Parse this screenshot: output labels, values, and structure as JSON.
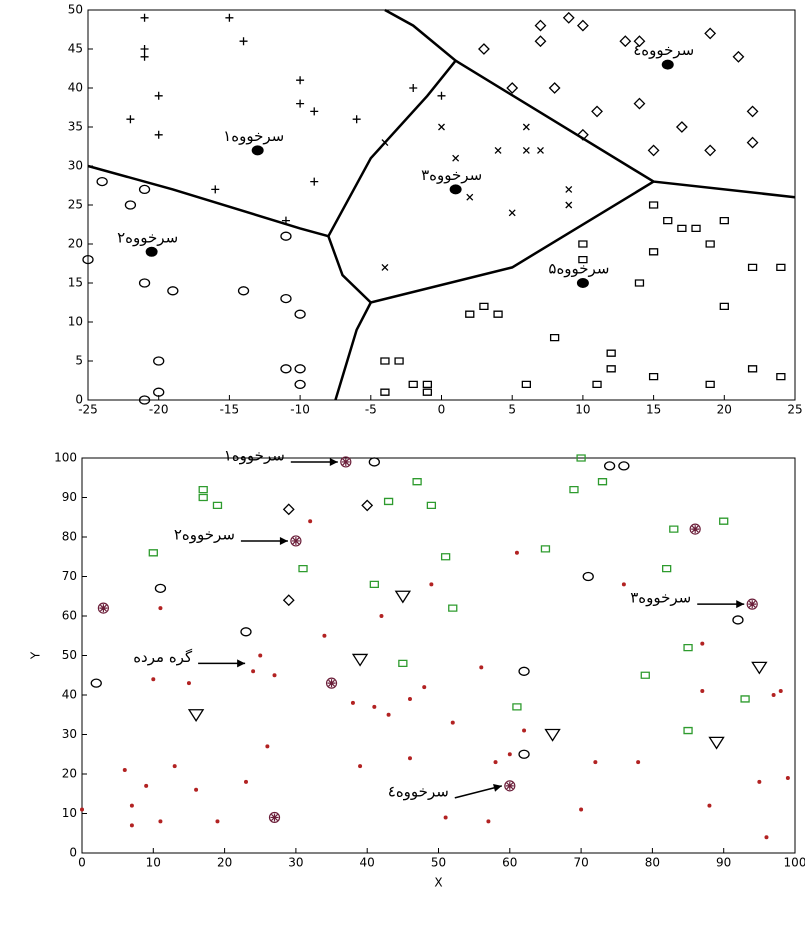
{
  "chart_data": [
    {
      "type": "scatter",
      "xlim": [
        -25,
        25
      ],
      "ylim": [
        0,
        50
      ],
      "xticks": [
        -25,
        -20,
        -15,
        -10,
        -5,
        0,
        5,
        10,
        15,
        20,
        25
      ],
      "yticks": [
        0,
        5,
        10,
        15,
        20,
        25,
        30,
        35,
        40,
        45,
        50
      ],
      "series": [
        {
          "marker": "plus",
          "color": "#000",
          "x": [
            -21,
            -21,
            -21,
            -15,
            -14,
            -22,
            -20,
            -20,
            -10,
            -10,
            -9,
            -16,
            -9,
            -11,
            -6,
            -2,
            0
          ],
          "y": [
            49,
            45,
            44,
            49,
            46,
            36,
            39,
            34,
            41,
            38,
            37,
            27,
            28,
            23,
            36,
            40,
            39
          ]
        },
        {
          "marker": "circle",
          "color": "#000",
          "x": [
            -24,
            -21,
            -22,
            -25,
            -21,
            -19,
            -14,
            -11,
            -10,
            -11,
            -20,
            -11,
            -10,
            -10,
            -20,
            -21
          ],
          "y": [
            28,
            27,
            25,
            18,
            15,
            14,
            14,
            13,
            11,
            21,
            5,
            4,
            4,
            2,
            1,
            0
          ]
        },
        {
          "marker": "cross",
          "color": "#000",
          "x": [
            -4,
            0,
            1,
            2,
            4,
            6,
            7,
            5,
            9,
            9,
            6,
            -4
          ],
          "y": [
            33,
            35,
            31,
            26,
            32,
            32,
            32,
            24,
            27,
            25,
            35,
            17
          ]
        },
        {
          "marker": "diamond",
          "color": "#000",
          "x": [
            3,
            7,
            7,
            9,
            10,
            13,
            14,
            19,
            21,
            22,
            22,
            19,
            17,
            15,
            14,
            11,
            8,
            5,
            10
          ],
          "y": [
            45,
            48,
            46,
            49,
            48,
            46,
            46,
            47,
            44,
            37,
            33,
            32,
            35,
            32,
            38,
            37,
            40,
            40,
            34
          ]
        },
        {
          "marker": "square",
          "color": "#000",
          "x": [
            15,
            16,
            17,
            18,
            20,
            19,
            22,
            24,
            20,
            15,
            14,
            10,
            10,
            4,
            3,
            2,
            8,
            12,
            12,
            11,
            15,
            19,
            22,
            24,
            -3,
            -4,
            -2,
            -1,
            -1,
            -4,
            6
          ],
          "y": [
            25,
            23,
            22,
            22,
            23,
            20,
            17,
            17,
            12,
            19,
            15,
            18,
            20,
            11,
            12,
            11,
            8,
            6,
            4,
            2,
            3,
            2,
            4,
            3,
            5,
            5,
            2,
            2,
            1,
            1,
            2
          ]
        },
        {
          "marker": "filled",
          "color": "#000",
          "x": [
            -13,
            -20.5,
            1,
            16,
            10
          ],
          "y": [
            32,
            19,
            27,
            43,
            15
          ]
        },
        {
          "marker": "line",
          "color": "#000",
          "x": [
            -25,
            -19,
            -10,
            -8,
            -5,
            -1,
            1,
            -2,
            -4
          ],
          "y": [
            30,
            27,
            22,
            21,
            31,
            39,
            43.5,
            48,
            50
          ]
        },
        {
          "marker": "line",
          "color": "#000",
          "x": [
            1,
            15,
            25
          ],
          "y": [
            43.5,
            28,
            26
          ]
        },
        {
          "marker": "line",
          "color": "#000",
          "x": [
            -8,
            -7,
            -5,
            5,
            15
          ],
          "y": [
            21,
            16,
            12.5,
            17,
            28
          ]
        },
        {
          "marker": "line",
          "color": "#000",
          "x": [
            -5,
            -6,
            -7,
            -7.5
          ],
          "y": [
            12.5,
            9,
            3,
            0
          ]
        }
      ],
      "annotations": [
        {
          "text": "سرخووه۱",
          "x": -13,
          "y": 32
        },
        {
          "text": "سرخووه۲",
          "x": -20.5,
          "y": 19
        },
        {
          "text": "سرخووه۳",
          "x": 1,
          "y": 27
        },
        {
          "text": "سرخووه٤",
          "x": 16,
          "y": 43
        },
        {
          "text": "سرخووه۵",
          "x": 10,
          "y": 15
        }
      ]
    },
    {
      "type": "scatter",
      "xlabel": "X",
      "ylabel": "Y",
      "xlim": [
        0,
        100
      ],
      "ylim": [
        0,
        100
      ],
      "xticks": [
        0,
        10,
        20,
        30,
        40,
        50,
        60,
        70,
        80,
        90,
        100
      ],
      "yticks": [
        0,
        10,
        20,
        30,
        40,
        50,
        60,
        70,
        80,
        90,
        100
      ],
      "series": [
        {
          "marker": "dot",
          "color": "#b22222",
          "x": [
            0,
            6,
            7,
            7,
            9,
            11,
            10,
            11,
            13,
            15,
            16,
            19,
            24,
            23,
            25,
            26,
            27,
            32,
            34,
            39,
            38,
            41,
            42,
            43,
            46,
            46,
            48,
            49,
            51,
            52,
            56,
            57,
            58,
            60,
            62,
            61,
            70,
            72,
            76,
            78,
            87,
            87,
            88,
            95,
            96,
            97,
            99,
            98
          ],
          "y": [
            11,
            21,
            12,
            7,
            17,
            8,
            44,
            62,
            22,
            43,
            16,
            8,
            46,
            18,
            50,
            27,
            45,
            84,
            55,
            22,
            38,
            37,
            60,
            35,
            24,
            39,
            42,
            68,
            9,
            33,
            47,
            8,
            23,
            25,
            31,
            76,
            11,
            23,
            68,
            23,
            53,
            41,
            12,
            18,
            4,
            40,
            19,
            41
          ]
        },
        {
          "marker": "circle",
          "color": "#000",
          "x": [
            2,
            11,
            23,
            62,
            62,
            71,
            92,
            41,
            74,
            76
          ],
          "y": [
            43,
            67,
            56,
            46,
            25,
            70,
            59,
            99,
            98,
            98
          ]
        },
        {
          "marker": "diamond",
          "color": "#000",
          "x": [
            29,
            29,
            40
          ],
          "y": [
            87,
            64,
            88
          ]
        },
        {
          "marker": "square",
          "color": "#2e9b2e",
          "x": [
            17,
            17,
            19,
            10,
            31,
            43,
            41,
            47,
            49,
            51,
            52,
            45,
            61,
            65,
            69,
            70,
            73,
            83,
            82,
            85,
            90,
            93,
            79,
            85
          ],
          "y": [
            92,
            90,
            88,
            76,
            72,
            89,
            68,
            94,
            88,
            75,
            62,
            48,
            37,
            77,
            92,
            100,
            94,
            82,
            72,
            52,
            84,
            39,
            45,
            31
          ]
        },
        {
          "marker": "triangle",
          "color": "#000",
          "x": [
            16,
            39,
            45,
            66,
            89,
            95
          ],
          "y": [
            35,
            49,
            65,
            30,
            28,
            47
          ]
        },
        {
          "marker": "star",
          "color": "#6b1f3a",
          "x": [
            3,
            35,
            27,
            86,
            94,
            30,
            37,
            60
          ],
          "y": [
            62,
            43,
            9,
            82,
            63,
            79,
            99,
            17
          ]
        }
      ],
      "annotations": [
        {
          "text": "سرخووه۱",
          "x": 37,
          "y": 99
        },
        {
          "text": "سرخووه۲",
          "x": 30,
          "y": 79
        },
        {
          "text": "سرخووه۳",
          "x": 94,
          "y": 63
        },
        {
          "text": "سرخووه٤",
          "x": 60,
          "y": 17
        },
        {
          "text": "گره مرده",
          "x": 24,
          "y": 48
        }
      ]
    }
  ]
}
